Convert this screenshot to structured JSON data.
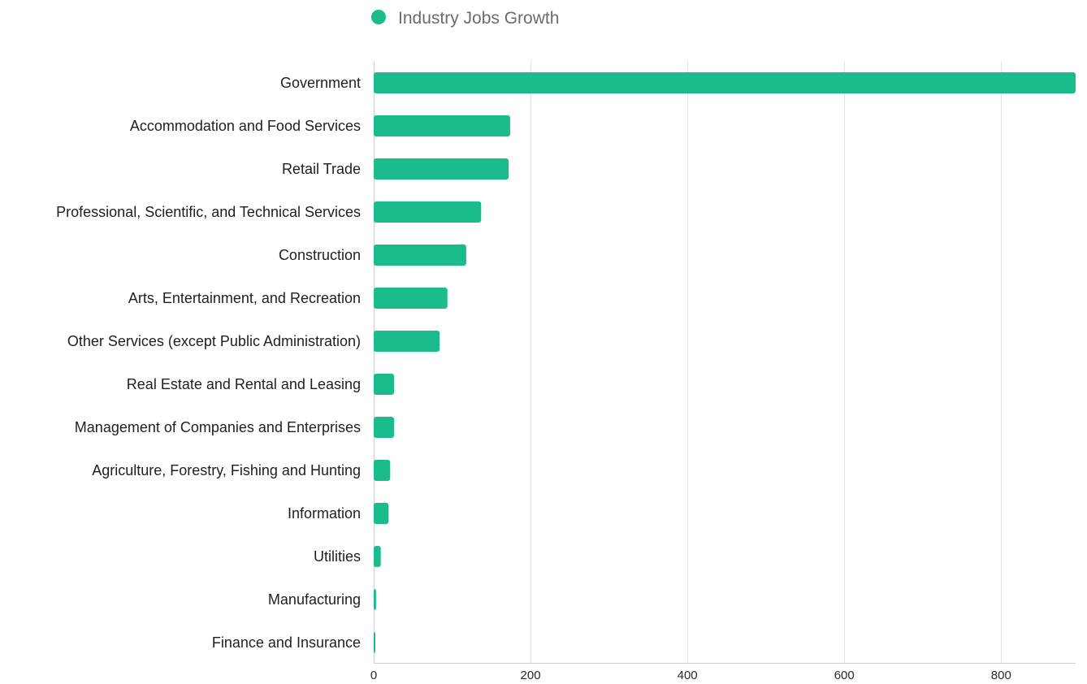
{
  "chart_data": {
    "type": "bar",
    "orientation": "horizontal",
    "title": "",
    "xlabel": "",
    "ylabel": "",
    "legend": {
      "placement": "top-center",
      "entries": [
        "Industry Jobs Growth"
      ]
    },
    "grid": true,
    "xlim": [
      0,
      895
    ],
    "x_ticks": [
      0,
      200,
      400,
      600,
      800
    ],
    "categories": [
      "Government",
      "Accommodation and Food Services",
      "Retail Trade",
      "Professional, Scientific, and Technical Services",
      "Construction",
      "Arts, Entertainment, and Recreation",
      "Other Services (except Public Administration)",
      "Real Estate and Rental and Leasing",
      "Management of Companies and Enterprises",
      "Agriculture, Forestry, Fishing and Hunting",
      "Information",
      "Utilities",
      "Manufacturing",
      "Finance and Insurance"
    ],
    "series": [
      {
        "name": "Industry Jobs Growth",
        "color": "#1abc8c",
        "values": [
          895,
          174,
          172,
          137,
          118,
          94,
          84,
          26,
          26,
          21,
          19,
          9,
          3,
          1
        ]
      }
    ]
  }
}
